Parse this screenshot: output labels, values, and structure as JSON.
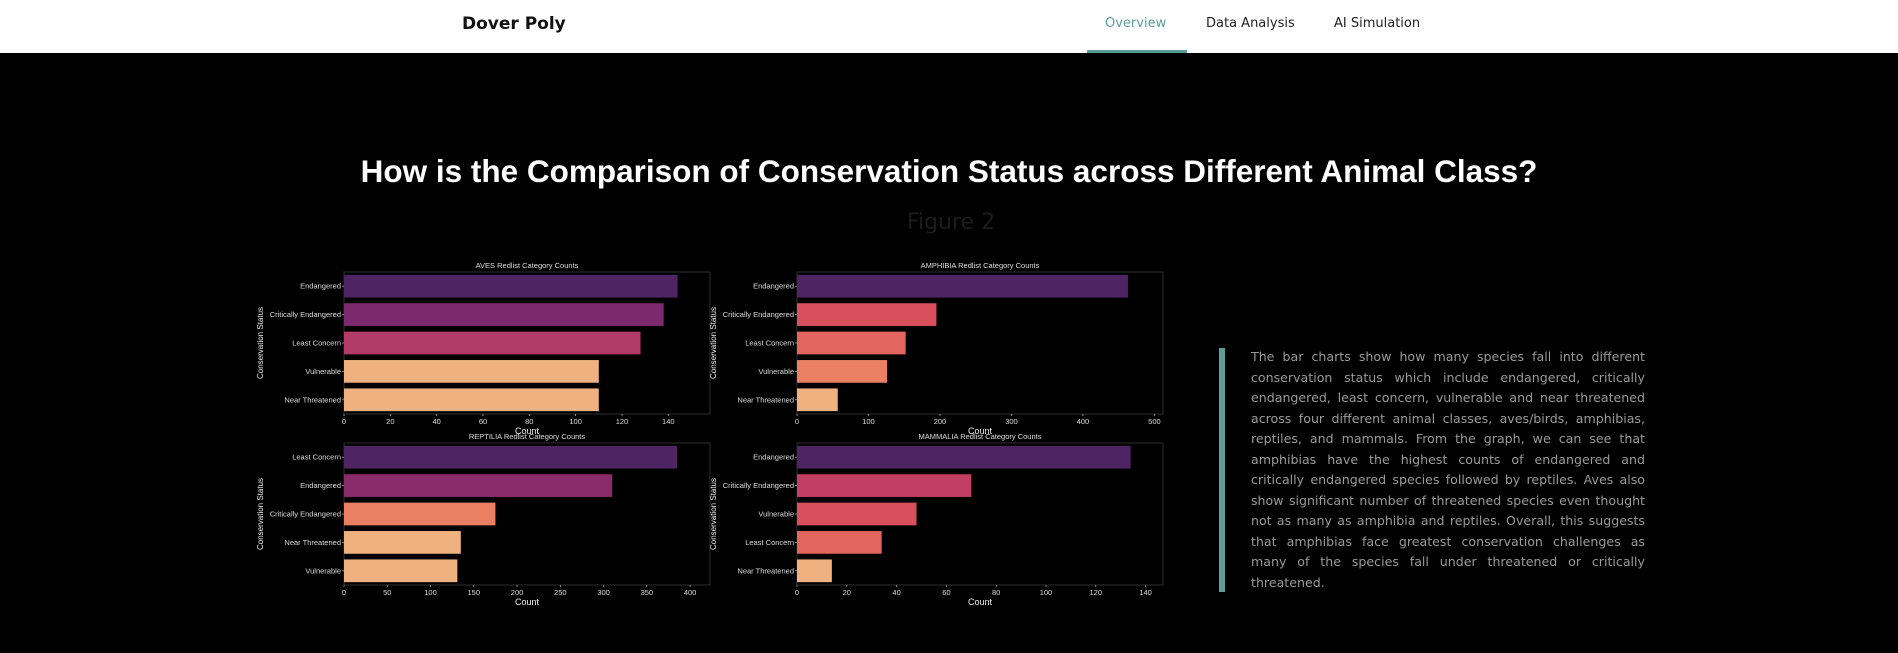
{
  "nav": {
    "brand": "Dover Poly",
    "links": [
      "Overview",
      "Data Analysis",
      "AI Simulation"
    ],
    "active_index": 0
  },
  "main": {
    "heading": "How is the Comparison of Conservation Status across Different Animal Class?",
    "figure_label": "Figure 2",
    "description": "The bar charts show how many species fall into different conservation status which include endangered, critically endangered, least concern, vulnerable and near threatened across four different animal classes, aves/birds, amphibias, reptiles, and mammals. From the graph, we can see that amphibias have the highest counts of endangered and critically endangered species followed by reptiles. Aves also show significant number of threatened species even thought not as many as amphibia and reptiles. Overall, this suggests that amphibias face greatest conservation challenges as many of the species fall under threatened or critically threatened."
  },
  "colors": {
    "accent": "#5a9e98",
    "bar_palette": [
      "#4f2463",
      "#7b2a6d",
      "#b23c67",
      "#d9505c",
      "#e3655e",
      "#ea7f62",
      "#ed9a6b",
      "#eeb17f"
    ]
  },
  "chart_data": [
    {
      "type": "bar",
      "orientation": "horizontal",
      "title": "AVES Redlist Category Counts",
      "xlabel": "Count",
      "ylabel": "Conservation Status",
      "categories": [
        "Endangered",
        "Critically Endangered",
        "Least Concern",
        "Vulnerable",
        "Near Threatened"
      ],
      "values": [
        144,
        138,
        128,
        110,
        110
      ],
      "bar_colors": [
        "#4f2463",
        "#7b2a6d",
        "#b23c67",
        "#eeb17f",
        "#eeb17f"
      ],
      "xlim": [
        0,
        158
      ],
      "xticks": [
        0,
        20,
        40,
        60,
        80,
        100,
        120,
        140
      ]
    },
    {
      "type": "bar",
      "orientation": "horizontal",
      "title": "AMPHIBIA Redlist Category Counts",
      "xlabel": "Count",
      "ylabel": "Conservation Status",
      "categories": [
        "Endangered",
        "Critically Endangered",
        "Least Concern",
        "Vulnerable",
        "Near Threatened"
      ],
      "values": [
        463,
        195,
        152,
        126,
        57
      ],
      "bar_colors": [
        "#4f2463",
        "#d9505c",
        "#e3655e",
        "#ea7f62",
        "#eeb17f"
      ],
      "xlim": [
        0,
        512
      ],
      "xticks": [
        0,
        100,
        200,
        300,
        400,
        500
      ]
    },
    {
      "type": "bar",
      "orientation": "horizontal",
      "title": "REPTILIA Redlist Category Counts",
      "xlabel": "Count",
      "ylabel": "Conservation Status",
      "categories": [
        "Least Concern",
        "Endangered",
        "Critically Endangered",
        "Near Threatened",
        "Vulnerable"
      ],
      "values": [
        385,
        310,
        175,
        135,
        131
      ],
      "bar_colors": [
        "#4f2463",
        "#8a2c6c",
        "#ea7f62",
        "#eeb17f",
        "#eeb17f"
      ],
      "xlim": [
        0,
        423
      ],
      "xticks": [
        0,
        50,
        100,
        150,
        200,
        250,
        300,
        350,
        400
      ]
    },
    {
      "type": "bar",
      "orientation": "horizontal",
      "title": "MAMMALIA Redlist Category Counts",
      "xlabel": "Count",
      "ylabel": "Conservation Status",
      "categories": [
        "Endangered",
        "Critically Endangered",
        "Vulnerable",
        "Least Concern",
        "Near Threatened"
      ],
      "values": [
        134,
        70,
        48,
        34,
        14
      ],
      "bar_colors": [
        "#4f2463",
        "#c23e62",
        "#d9505c",
        "#e3655e",
        "#eeb17f"
      ],
      "xlim": [
        0,
        147
      ],
      "xticks": [
        0,
        20,
        40,
        60,
        80,
        100,
        120,
        140
      ]
    }
  ]
}
